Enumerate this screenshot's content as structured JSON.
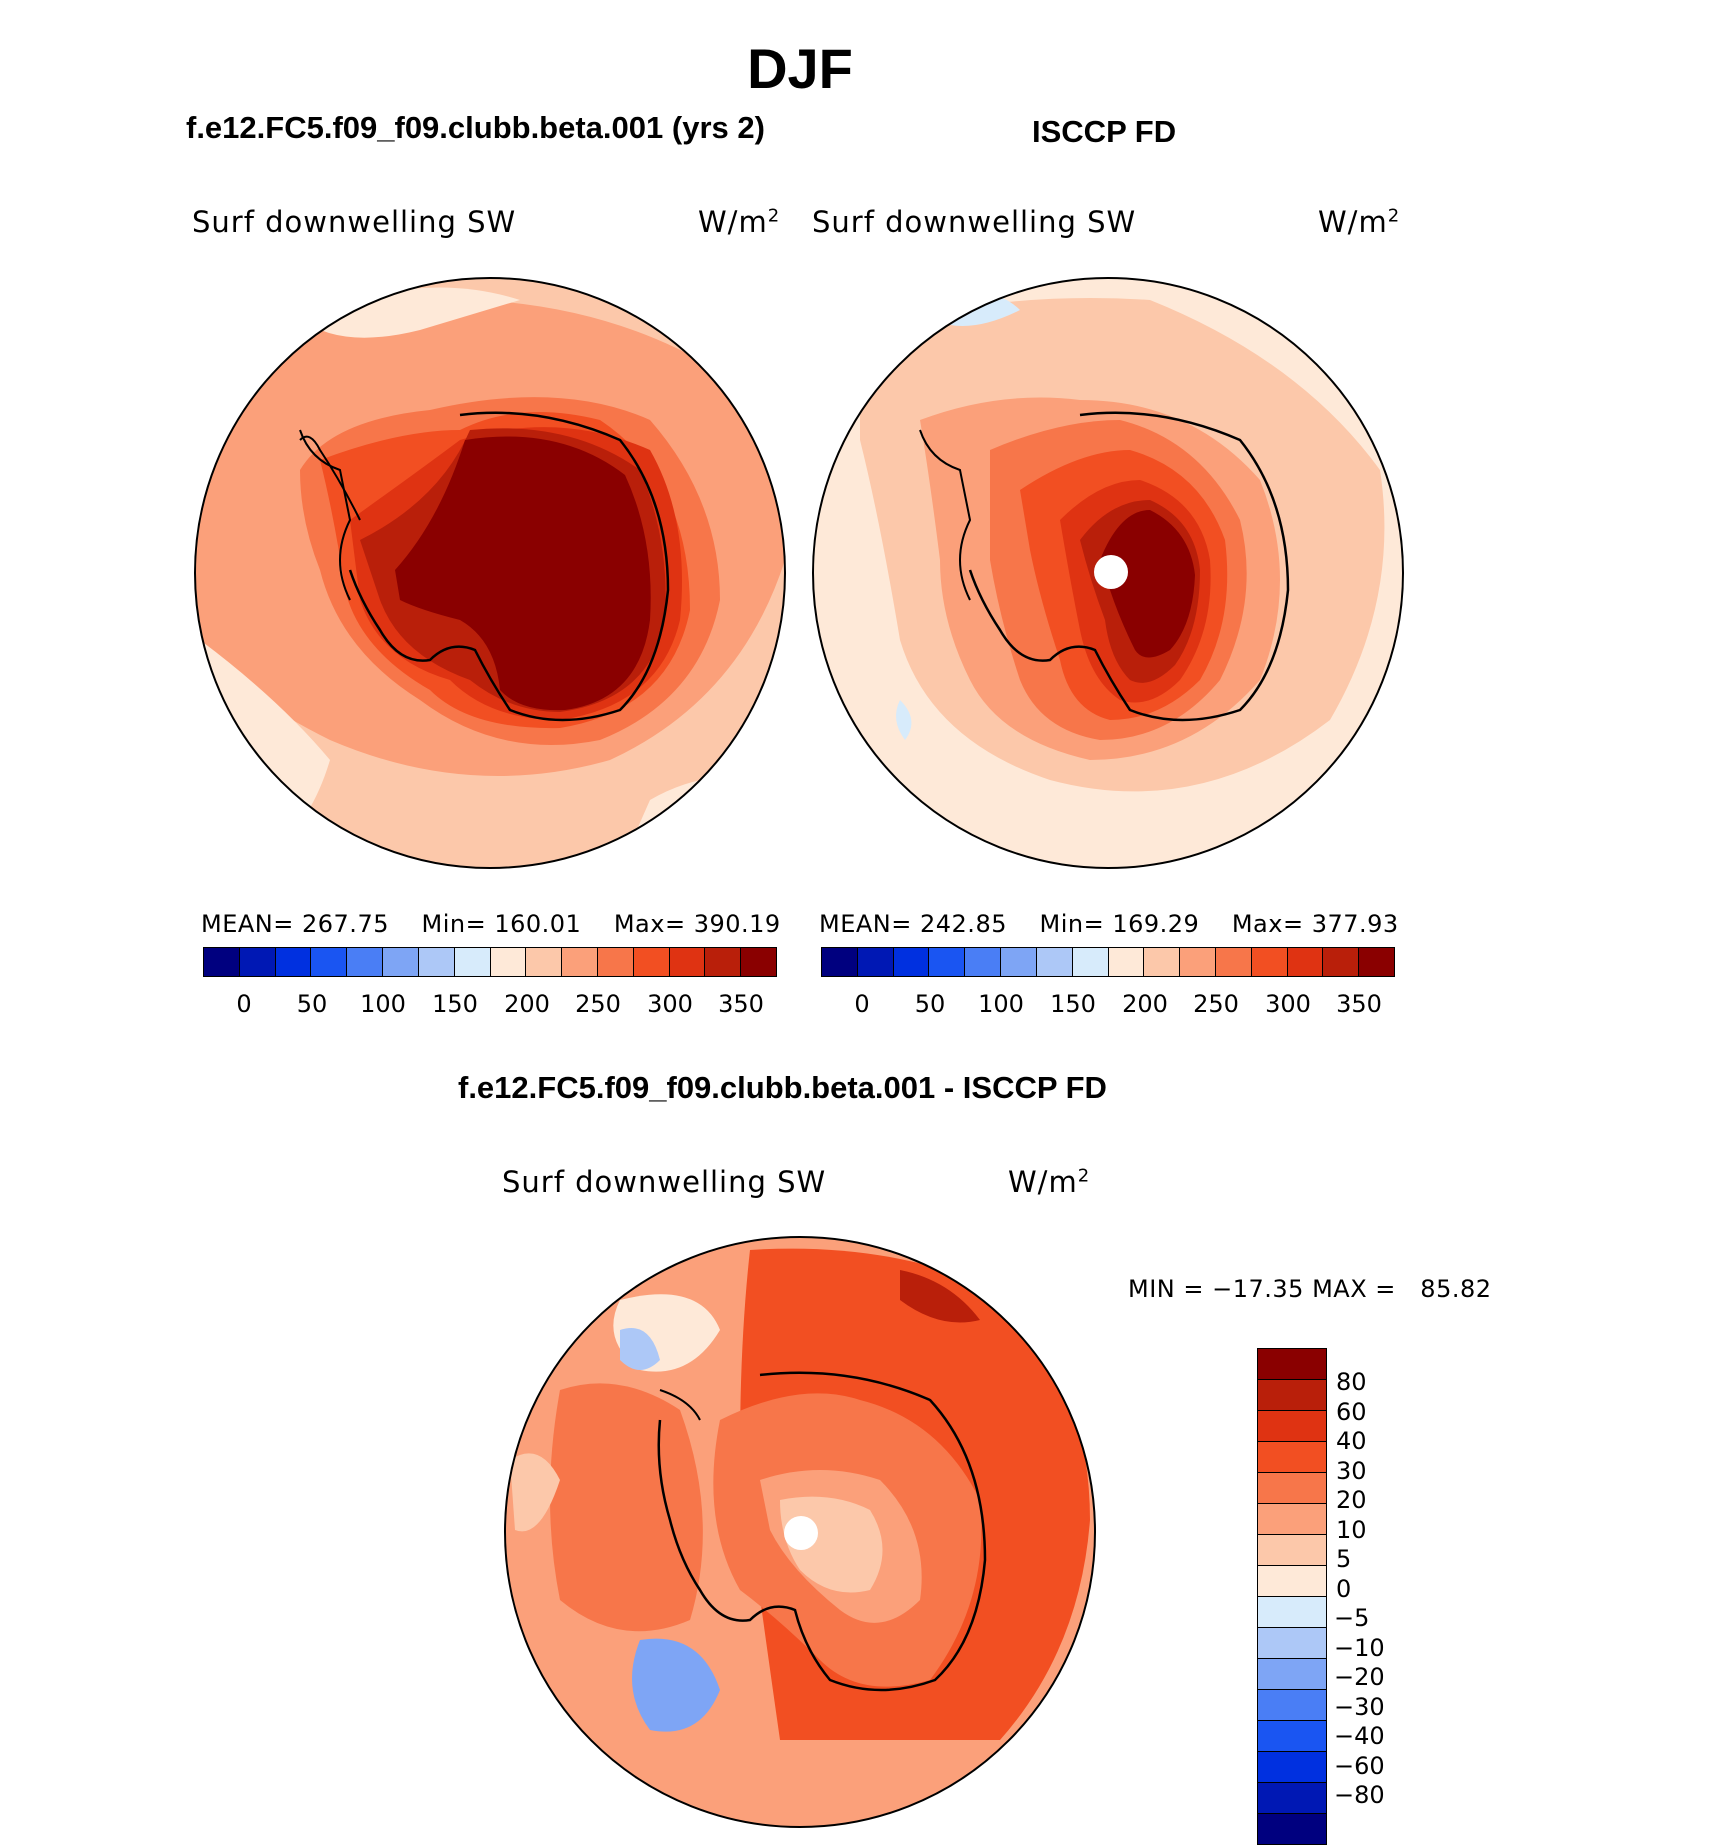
{
  "figure": {
    "season": "DJF",
    "panel_a_title": "f.e12.FC5.f09_f09.clubb.beta.001 (yrs 2)",
    "panel_b_title": "ISCCP FD",
    "diff_title": "f.e12.FC5.f09_f09.clubb.beta.001 - ISCCP FD",
    "variable": "Surf downwelling SW",
    "units_base": "W/m",
    "units_exp": "2"
  },
  "stats": {
    "a": {
      "mean_label": "MEAN=",
      "mean": "267.75",
      "min_label": "Min=",
      "min": "160.01",
      "max_label": "Max=",
      "max": "390.19"
    },
    "b": {
      "mean_label": "MEAN=",
      "mean": "242.85",
      "min_label": "Min=",
      "min": "169.29",
      "max_label": "Max=",
      "max": "377.93"
    },
    "diff": {
      "min_label": "MIN =",
      "min": "−17.35",
      "max_label": "MAX =",
      "max": "85.82"
    }
  },
  "chart_data": [
    {
      "type": "heatmap",
      "name": "panel-model",
      "projection": "south-polar-stereographic",
      "title": "f.e12.FC5.f09_f09.clubb.beta.001 (yrs 2)",
      "variable": "Surf downwelling SW",
      "units": "W/m2",
      "mean": 267.75,
      "min": 160.01,
      "max": 390.19,
      "levels": [
        0,
        25,
        50,
        75,
        100,
        125,
        150,
        175,
        200,
        225,
        250,
        275,
        300,
        325,
        350
      ],
      "colorbar_ticks": [
        "0",
        "50",
        "100",
        "150",
        "200",
        "250",
        "300",
        "350"
      ]
    },
    {
      "type": "heatmap",
      "name": "panel-obs",
      "projection": "south-polar-stereographic",
      "title": "ISCCP FD",
      "variable": "Surf downwelling SW",
      "units": "W/m2",
      "mean": 242.85,
      "min": 169.29,
      "max": 377.93,
      "levels": [
        0,
        25,
        50,
        75,
        100,
        125,
        150,
        175,
        200,
        225,
        250,
        275,
        300,
        325,
        350
      ],
      "colorbar_ticks": [
        "0",
        "50",
        "100",
        "150",
        "200",
        "250",
        "300",
        "350"
      ]
    },
    {
      "type": "heatmap",
      "name": "panel-diff",
      "projection": "south-polar-stereographic",
      "title": "f.e12.FC5.f09_f09.clubb.beta.001 - ISCCP FD",
      "variable": "Surf downwelling SW",
      "units": "W/m2",
      "min": -17.35,
      "max": 85.82,
      "levels": [
        -80,
        -60,
        -40,
        -30,
        -20,
        -10,
        -5,
        0,
        5,
        10,
        20,
        30,
        40,
        60,
        80
      ],
      "colorbar_ticks": [
        "80",
        "60",
        "40",
        "30",
        "20",
        "10",
        "5",
        "0",
        "−5",
        "−10",
        "−20",
        "−30",
        "−40",
        "−60",
        "−80"
      ]
    }
  ],
  "colorbar": {
    "colors": [
      "#00007f",
      "#0018b4",
      "#0030e0",
      "#1a55f2",
      "#4a7ef5",
      "#7ea5f5",
      "#adc8f7",
      "#d7ebfb",
      "#fee9d8",
      "#fcc8aa",
      "#fba07a",
      "#f7764a",
      "#f24f22",
      "#df3312",
      "#b91f0a",
      "#8a0000"
    ]
  }
}
